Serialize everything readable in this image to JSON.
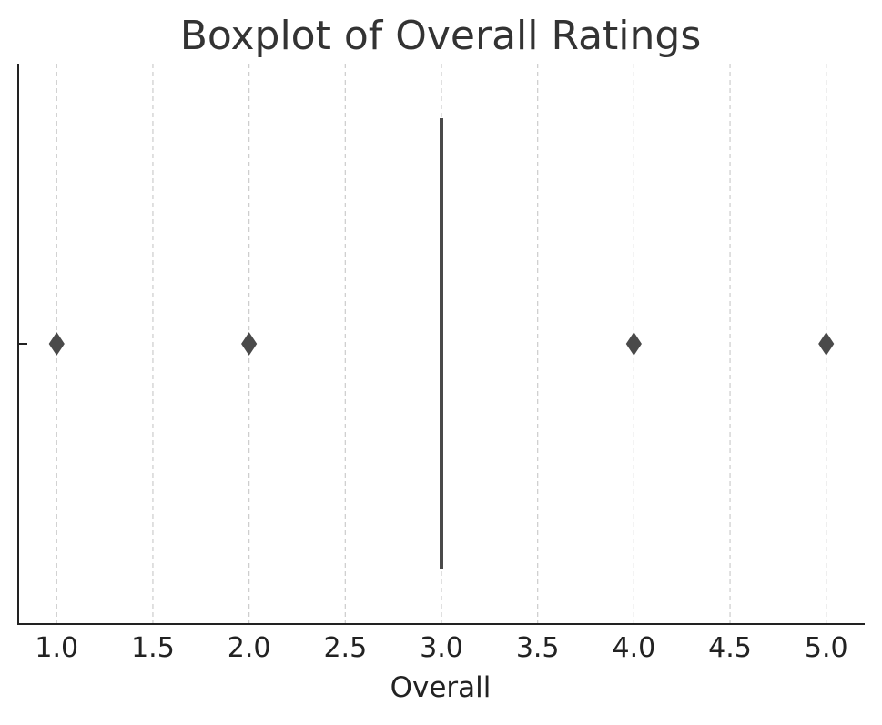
{
  "chart_data": {
    "type": "boxplot",
    "title": "Boxplot of Overall Ratings",
    "xlabel": "Overall",
    "ylabel": "",
    "orientation": "horizontal",
    "xlim": [
      0.8,
      5.2
    ],
    "xticks": [
      1.0,
      1.5,
      2.0,
      2.5,
      3.0,
      3.5,
      4.0,
      4.5,
      5.0
    ],
    "xtick_labels": [
      "1.0",
      "1.5",
      "2.0",
      "2.5",
      "3.0",
      "3.5",
      "4.0",
      "4.5",
      "5.0"
    ],
    "grid": "x-dashed",
    "box": {
      "q1": 3.0,
      "median": 3.0,
      "q3": 3.0,
      "whisker_low": 3.0,
      "whisker_high": 3.0
    },
    "outliers": [
      1.0,
      2.0,
      4.0,
      5.0
    ],
    "colors": {
      "box": "#4a4a4a",
      "outlier": "#4a4a4a",
      "grid": "#cccccc",
      "axis": "#222222",
      "title": "#333333"
    }
  }
}
